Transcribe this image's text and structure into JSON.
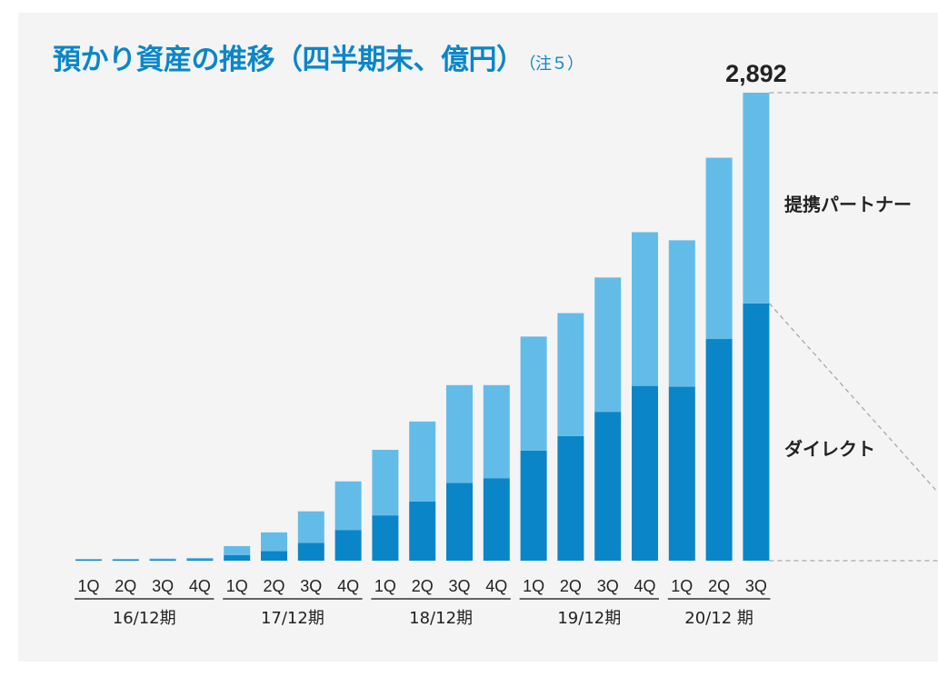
{
  "title": "預かり資産の推移（四半期末、億円）",
  "note": "（注５）",
  "chart_data": {
    "type": "bar",
    "stacked": true,
    "categories": [
      "1Q",
      "2Q",
      "3Q",
      "4Q",
      "1Q",
      "2Q",
      "3Q",
      "4Q",
      "1Q",
      "2Q",
      "3Q",
      "4Q",
      "1Q",
      "2Q",
      "3Q",
      "4Q",
      "1Q",
      "2Q",
      "3Q"
    ],
    "groups": [
      {
        "label": "16/12期",
        "count": 4
      },
      {
        "label": "17/12期",
        "count": 4
      },
      {
        "label": "18/12期",
        "count": 4
      },
      {
        "label": "19/12期",
        "count": 4
      },
      {
        "label": "20/12 期",
        "count": 3
      }
    ],
    "series": [
      {
        "name": "ダイレクト",
        "color": "#0a86c8",
        "values": [
          5,
          7,
          8,
          10,
          35,
          60,
          110,
          190,
          280,
          365,
          480,
          510,
          680,
          770,
          920,
          1080,
          1075,
          1370,
          1590
        ]
      },
      {
        "name": "提携パートナー",
        "color": "#63bce8",
        "values": [
          3,
          3,
          5,
          7,
          55,
          115,
          195,
          300,
          405,
          495,
          605,
          575,
          705,
          760,
          830,
          950,
          905,
          1120,
          1302
        ]
      }
    ],
    "total_label": "2,892",
    "total_label_index": 18,
    "ylim": [
      0,
      2892
    ],
    "grid": false
  }
}
